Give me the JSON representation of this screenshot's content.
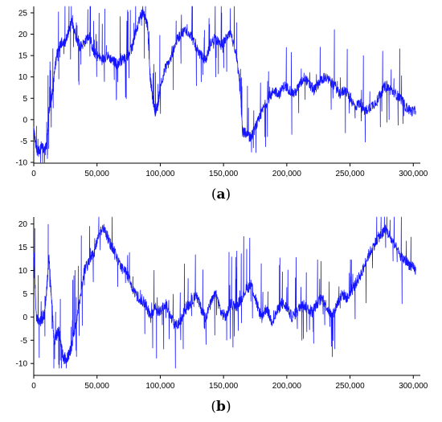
{
  "figure": {
    "panels": [
      {
        "caption_open": "(",
        "caption_letter": "a",
        "caption_close": ")"
      },
      {
        "caption_open": "(",
        "caption_letter": "b",
        "caption_close": ")"
      }
    ],
    "line_color": "#1515ff"
  },
  "chart_data": [
    {
      "type": "line",
      "x_ticks": [
        0,
        50000,
        100000,
        150000,
        200000,
        250000,
        300000
      ],
      "x_tick_labels": [
        "0",
        "50,000",
        "100,000",
        "150,000",
        "200,000",
        "250,000",
        "300,000"
      ],
      "y_ticks": [
        -10,
        -5,
        0,
        5,
        10,
        15,
        20,
        25
      ],
      "y_tick_labels": [
        "-10",
        "-5",
        "0",
        "5",
        "10",
        "15",
        "20",
        "25"
      ],
      "xlim": [
        0,
        303000
      ],
      "ylim": [
        -10,
        26.5
      ],
      "grid": false,
      "series": [
        {
          "x": [
            0,
            2000,
            4000,
            6000,
            8000,
            10000,
            11000,
            12000,
            14000,
            16000,
            18000,
            20000,
            22000,
            25000,
            28000,
            30000,
            33000,
            36000,
            40000,
            44000,
            47000,
            50000,
            54000,
            58000,
            62000,
            66000,
            70000,
            74000,
            78000,
            80000,
            84000,
            86000,
            88000,
            90000,
            92000,
            94000,
            96000,
            98000,
            100000,
            104000,
            108000,
            112000,
            116000,
            120000,
            124000,
            128000,
            132000,
            136000,
            140000,
            144000,
            148000,
            152000,
            156000,
            160000,
            163000,
            165000,
            167000,
            170000,
            172000,
            175000,
            178000,
            182000,
            186000,
            190000,
            194000,
            198000,
            202000,
            206000,
            210000,
            214000,
            218000,
            222000,
            226000,
            230000,
            234000,
            238000,
            242000,
            246000,
            250000,
            254000,
            258000,
            262000,
            266000,
            270000,
            274000,
            278000,
            282000,
            286000,
            290000,
            294000,
            298000,
            302000
          ],
          "y": [
            -2,
            -7,
            -7.5,
            -6,
            -7,
            -6.5,
            -3,
            2,
            5,
            10,
            15,
            17,
            18,
            18,
            21,
            23,
            20,
            17,
            18,
            20,
            16,
            15,
            14,
            15,
            14,
            13,
            14,
            15,
            17,
            20,
            24,
            25,
            24,
            22,
            10,
            5,
            2,
            3,
            8,
            12,
            14,
            18,
            20,
            21,
            20,
            17,
            15,
            14,
            18,
            19,
            17,
            19,
            20,
            15,
            8,
            -3,
            -3,
            -4,
            -4,
            -2,
            0,
            3,
            5,
            7,
            6,
            8,
            7,
            6,
            8,
            10,
            8,
            7,
            9,
            10,
            9,
            8,
            6,
            7,
            5,
            3,
            4,
            2,
            3,
            4,
            6,
            8,
            7,
            6,
            5,
            3,
            2,
            2
          ]
        }
      ]
    },
    {
      "type": "line",
      "x_ticks": [
        0,
        50000,
        100000,
        150000,
        200000,
        250000,
        300000
      ],
      "x_tick_labels": [
        "0",
        "50,000",
        "100,000",
        "150,000",
        "200,000",
        "250,000",
        "300,000"
      ],
      "y_ticks": [
        -10,
        -5,
        0,
        5,
        10,
        15,
        20
      ],
      "y_tick_labels": [
        "-10",
        "-5",
        "0",
        "5",
        "10",
        "15",
        "20"
      ],
      "xlim": [
        0,
        303000
      ],
      "ylim": [
        -11,
        21.5
      ],
      "grid": false,
      "series": [
        {
          "x": [
            0,
            2000,
            5000,
            8000,
            10000,
            12000,
            14000,
            16000,
            18000,
            20000,
            22000,
            24000,
            26000,
            28000,
            30000,
            33000,
            36000,
            40000,
            44000,
            48000,
            52000,
            56000,
            60000,
            64000,
            68000,
            72000,
            76000,
            80000,
            84000,
            88000,
            92000,
            96000,
            100000,
            104000,
            108000,
            112000,
            116000,
            120000,
            124000,
            128000,
            132000,
            136000,
            140000,
            144000,
            148000,
            152000,
            156000,
            160000,
            164000,
            168000,
            172000,
            176000,
            180000,
            184000,
            188000,
            192000,
            196000,
            200000,
            204000,
            208000,
            212000,
            216000,
            220000,
            224000,
            228000,
            232000,
            236000,
            240000,
            244000,
            248000,
            252000,
            256000,
            260000,
            264000,
            268000,
            272000,
            276000,
            278000,
            282000,
            286000,
            290000,
            294000,
            298000,
            302000
          ],
          "y": [
            14,
            0,
            -1,
            0,
            5,
            13,
            4,
            -5,
            -4,
            -3,
            -7,
            -9,
            -9,
            -8,
            -6,
            -2,
            3,
            10,
            12,
            14,
            18,
            19,
            16,
            14,
            11,
            10,
            8,
            5,
            4,
            3,
            0,
            2,
            1,
            3,
            0,
            -2,
            -1,
            2,
            3,
            5,
            2,
            0,
            3,
            5,
            1,
            0,
            3,
            2,
            4,
            6,
            7,
            3,
            0,
            2,
            -1,
            1,
            3,
            2,
            0,
            1,
            3,
            2,
            1,
            3,
            4,
            2,
            0,
            3,
            5,
            4,
            6,
            8,
            10,
            13,
            15,
            17,
            18,
            19,
            17,
            15,
            13,
            12,
            11,
            10
          ]
        }
      ]
    }
  ]
}
